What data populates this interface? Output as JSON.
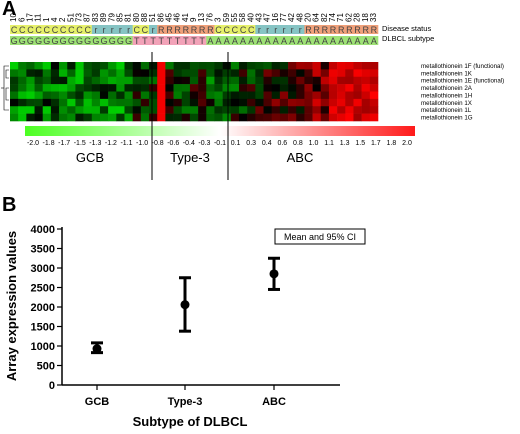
{
  "panel_a": {
    "letter": "A",
    "sample_ids": [
      "10",
      "6",
      "17",
      "11",
      "1",
      "4",
      "2",
      "51",
      "73",
      "87",
      "83",
      "89",
      "79",
      "85",
      "81",
      "80",
      "88",
      "51",
      "86",
      "45",
      "46",
      "41",
      "9",
      "13",
      "76",
      "3",
      "59",
      "55",
      "58",
      "40",
      "43",
      "47",
      "16",
      "77",
      "42",
      "48",
      "20",
      "64",
      "82",
      "74",
      "71",
      "62",
      "28",
      "18",
      "33"
    ],
    "disease_status": [
      "C",
      "C",
      "C",
      "C",
      "C",
      "C",
      "C",
      "C",
      "C",
      "C",
      "r",
      "r",
      "r",
      "r",
      "r",
      "C",
      "C",
      "r",
      "R",
      "R",
      "R",
      "R",
      "R",
      "R",
      "R",
      "C",
      "C",
      "C",
      "C",
      "C",
      "r",
      "r",
      "r",
      "r",
      "r",
      "r",
      "R",
      "R",
      "R",
      "R",
      "R",
      "R",
      "R",
      "R",
      "R"
    ],
    "dlbcl_subtype": [
      "G",
      "G",
      "G",
      "G",
      "G",
      "G",
      "G",
      "G",
      "G",
      "G",
      "G",
      "G",
      "G",
      "G",
      "G",
      "T",
      "T",
      "T",
      "T",
      "T",
      "T",
      "T",
      "T",
      "T",
      "A",
      "A",
      "A",
      "A",
      "A",
      "A",
      "A",
      "A",
      "A",
      "A",
      "A",
      "A",
      "A",
      "A",
      "A",
      "A",
      "A",
      "A",
      "A",
      "A",
      "A"
    ],
    "row_labels": [
      "Disease status",
      "DLBCL subtype"
    ],
    "genes": [
      "metallothionein 1F (functional)",
      "metallothionein 1K",
      "metallothionein 1E (functional)",
      "metallothionein 2A",
      "metallothionein 1H",
      "metallothionein 1X",
      "metallothionein 1L",
      "metallothionein 1G"
    ],
    "colorbar_ticks": [
      "-2.0",
      "-1.8",
      "-1.7",
      "-1.5",
      "-1.3",
      "-1.2",
      "-1.1",
      "-1.0",
      "-0.8",
      "-0.6",
      "-0.4",
      "-0.3",
      "-0.1",
      "0.1",
      "0.3",
      "0.4",
      "0.6",
      "0.8",
      "1.0",
      "1.1",
      "1.3",
      "1.5",
      "1.7",
      "1.8",
      "2.0"
    ],
    "group_labels": [
      "GCB",
      "Type-3",
      "ABC"
    ],
    "colors": {
      "C": "#e6f06a",
      "r": "#86c4c4",
      "R": "#f0a07a",
      "G": "#9ee276",
      "T": "#f2a2b8",
      "A": "#9ee276"
    }
  },
  "panel_b": {
    "letter": "B",
    "chart_data": {
      "type": "scatter",
      "title": "",
      "legend": "Mean and 95% CI",
      "xlabel": "Subtype of DLBCL",
      "ylabel": "Array expression values",
      "categories": [
        "GCB",
        "Type-3",
        "ABC"
      ],
      "mean": [
        930,
        2060,
        2850
      ],
      "ci_low": [
        830,
        1380,
        2450
      ],
      "ci_high": [
        1080,
        2750,
        3250
      ],
      "yticks": [
        0,
        500,
        1000,
        1500,
        2000,
        2500,
        3000,
        3500,
        4000
      ],
      "ylim": [
        0,
        4000
      ]
    }
  }
}
